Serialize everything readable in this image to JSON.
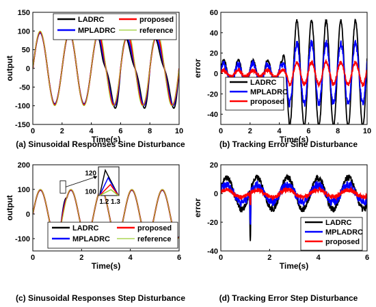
{
  "figure": {
    "colors": {
      "LADRC": "#000000",
      "MPLADRC": "#0000ff",
      "proposed": "#ff0000",
      "reference": "#9acd32"
    }
  },
  "chart_data": [
    {
      "id": "a",
      "type": "line",
      "caption": "(a) Sinusoidal Responses Sine Disturbance",
      "xlabel": "Time(s)",
      "ylabel": "output",
      "xlim": [
        0,
        10
      ],
      "ylim": [
        -150,
        150
      ],
      "xticks": [
        0,
        2,
        4,
        6,
        8,
        10
      ],
      "yticks": [
        -150,
        -100,
        -50,
        0,
        50,
        100,
        150
      ],
      "grid": false,
      "legend_position": "top",
      "series": [
        {
          "name": "LADRC",
          "model": {
            "kind": "sine_response",
            "amplitude": 95,
            "freq_hz": 0.5,
            "dist_start": 4.2,
            "dist_amp": 28,
            "dist_freq_hz": 1.0,
            "drop": 26
          }
        },
        {
          "name": "MPLADRC",
          "model": {
            "kind": "sine_response",
            "amplitude": 96,
            "freq_hz": 0.5,
            "dist_start": 4.2,
            "dist_amp": 14,
            "dist_freq_hz": 1.0,
            "drop": 18
          }
        },
        {
          "name": "proposed",
          "model": {
            "kind": "sine_response",
            "amplitude": 98,
            "freq_hz": 0.5,
            "dist_start": 4.2,
            "dist_amp": 5,
            "dist_freq_hz": 1.0,
            "drop": 10
          }
        },
        {
          "name": "reference",
          "model": {
            "kind": "sine_response",
            "amplitude": 100,
            "freq_hz": 0.5,
            "dist_start": 100,
            "dist_amp": 0,
            "dist_freq_hz": 1.0,
            "drop": 0
          }
        }
      ]
    },
    {
      "id": "b",
      "type": "line",
      "caption": "(b) Tracking Error Sine Disturbance",
      "xlabel": "Time(s)",
      "ylabel": "error",
      "xlim": [
        0,
        10
      ],
      "ylim": [
        -50,
        60
      ],
      "xticks": [
        0,
        2,
        4,
        6,
        8,
        10
      ],
      "yticks": [
        -40,
        -20,
        0,
        20,
        40,
        60
      ],
      "grid": false,
      "legend_position": "bottom-left",
      "series": [
        {
          "name": "LADRC",
          "model": {
            "kind": "sine_error",
            "pre_amp": 13,
            "post_amp": 52,
            "dist_start": 4.2,
            "freq_hz": 1.0,
            "noise": 1.5
          }
        },
        {
          "name": "MPLADRC",
          "model": {
            "kind": "sine_error",
            "pre_amp": 9,
            "post_amp": 30,
            "dist_start": 4.2,
            "freq_hz": 1.0,
            "noise": 3.5
          }
        },
        {
          "name": "proposed",
          "model": {
            "kind": "sine_error",
            "pre_amp": 3,
            "post_amp": 11,
            "dist_start": 4.2,
            "freq_hz": 1.0,
            "noise": 1.8
          }
        }
      ]
    },
    {
      "id": "c",
      "type": "line",
      "caption": "(c) Sinusoidal Responses Step Disturbance",
      "xlabel": "Time(s)",
      "ylabel": "output",
      "xlim": [
        0,
        6
      ],
      "ylim": [
        -150,
        200
      ],
      "xticks": [
        0,
        2,
        4,
        6
      ],
      "yticks": [
        -100,
        0,
        100,
        200
      ],
      "grid": false,
      "legend_position": "bottom",
      "inset": {
        "xlim": [
          1.15,
          1.33
        ],
        "ylim": [
          93,
          127
        ],
        "xtick_labels": [
          "1.2",
          "1.3"
        ],
        "ytick_labels": [
          "120",
          "100"
        ],
        "peaks": [
          {
            "name": "LADRC",
            "t": 1.21,
            "y": 123
          },
          {
            "name": "MPLADRC",
            "t": 1.235,
            "y": 114
          },
          {
            "name": "proposed",
            "t": 1.255,
            "y": 106
          },
          {
            "name": "reference",
            "t": 1.26,
            "y": 100
          }
        ]
      },
      "series": [
        {
          "name": "LADRC",
          "model": {
            "kind": "step_response",
            "amplitude": 97,
            "freq_hz": 0.8,
            "step_t": 1.15,
            "bump": 28
          }
        },
        {
          "name": "MPLADRC",
          "model": {
            "kind": "step_response",
            "amplitude": 98,
            "freq_hz": 0.8,
            "step_t": 1.15,
            "bump": 18
          }
        },
        {
          "name": "proposed",
          "model": {
            "kind": "step_response",
            "amplitude": 99,
            "freq_hz": 0.8,
            "step_t": 1.15,
            "bump": 9
          }
        },
        {
          "name": "reference",
          "model": {
            "kind": "step_response",
            "amplitude": 100,
            "freq_hz": 0.8,
            "step_t": 1.15,
            "bump": 0
          }
        }
      ]
    },
    {
      "id": "d",
      "type": "line",
      "caption": "(d) Tracking Error Step Disturbance",
      "xlabel": "Time(s)",
      "ylabel": "error",
      "xlim": [
        0,
        6
      ],
      "ylim": [
        -40,
        20
      ],
      "xticks": [
        0,
        2,
        4,
        6
      ],
      "yticks": [
        -40,
        -20,
        0,
        20
      ],
      "grid": false,
      "legend_position": "bottom-right",
      "series": [
        {
          "name": "LADRC",
          "model": {
            "kind": "step_error",
            "amp": 11,
            "freq_hz": 0.8,
            "step_t": 1.18,
            "spike": -35,
            "noise": 2.2
          }
        },
        {
          "name": "MPLADRC",
          "model": {
            "kind": "step_error",
            "amp": 6,
            "freq_hz": 0.8,
            "step_t": 1.18,
            "spike": -24,
            "noise": 2.8
          }
        },
        {
          "name": "proposed",
          "model": {
            "kind": "step_error",
            "amp": 2.5,
            "freq_hz": 0.8,
            "step_t": 1.18,
            "spike": -8,
            "noise": 1.5
          }
        }
      ]
    }
  ]
}
